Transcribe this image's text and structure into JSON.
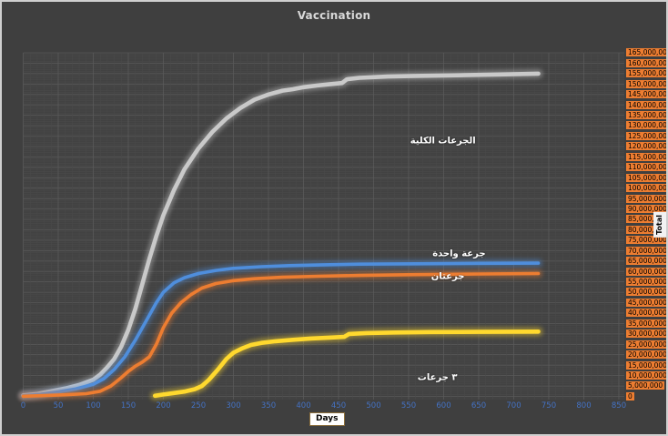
{
  "window": {
    "title": "Vaccination"
  },
  "chart_data": {
    "type": "line",
    "title": "Vaccination",
    "xlabel": "Days",
    "ylabel": "Total",
    "xlim": [
      0,
      850
    ],
    "ylim": [
      0,
      165000000
    ],
    "grid": {
      "minor": true,
      "major": true
    },
    "legend": "none",
    "x_ticks": [
      0,
      50,
      100,
      150,
      200,
      250,
      300,
      350,
      400,
      450,
      500,
      550,
      600,
      650,
      700,
      750,
      800,
      850
    ],
    "y_ticks": [
      0,
      5000000,
      10000000,
      15000000,
      20000000,
      25000000,
      30000000,
      35000000,
      40000000,
      45000000,
      50000000,
      55000000,
      60000000,
      65000000,
      70000000,
      75000000,
      80000000,
      85000000,
      90000000,
      95000000,
      100000000,
      105000000,
      110000000,
      115000000,
      120000000,
      125000000,
      130000000,
      135000000,
      140000000,
      145000000,
      150000000,
      155000000,
      160000000,
      165000000
    ],
    "colors": {
      "background": "#3F3F3F",
      "plot_background": "#424242",
      "grid_minor": "#4A4A4A",
      "grid_major": "#5A5A5A",
      "title_text": "#D9D9D9",
      "x_tick_text": "#4472C4",
      "y_tick_bg": "#ED7D31",
      "y_tick_text": "#000000",
      "annotation_text": "#FFFFFF"
    },
    "series": [
      {
        "id": "total-doses",
        "name": "الجرعات الكلية",
        "color": "#C9C9C9",
        "points": [
          [
            0,
            500000
          ],
          [
            20,
            1200000
          ],
          [
            40,
            2500000
          ],
          [
            60,
            3800000
          ],
          [
            80,
            5500000
          ],
          [
            100,
            8000000
          ],
          [
            110,
            10500000
          ],
          [
            120,
            14000000
          ],
          [
            130,
            18000000
          ],
          [
            140,
            24000000
          ],
          [
            150,
            32000000
          ],
          [
            160,
            42000000
          ],
          [
            170,
            54000000
          ],
          [
            180,
            66000000
          ],
          [
            190,
            77000000
          ],
          [
            200,
            87000000
          ],
          [
            215,
            99000000
          ],
          [
            230,
            109000000
          ],
          [
            250,
            119000000
          ],
          [
            270,
            127000000
          ],
          [
            290,
            133500000
          ],
          [
            310,
            138500000
          ],
          [
            330,
            142500000
          ],
          [
            350,
            145000000
          ],
          [
            370,
            146800000
          ],
          [
            385,
            147500000
          ],
          [
            400,
            148500000
          ],
          [
            420,
            149300000
          ],
          [
            440,
            150000000
          ],
          [
            455,
            150500000
          ],
          [
            462,
            152300000
          ],
          [
            480,
            153000000
          ],
          [
            520,
            153600000
          ],
          [
            560,
            153900000
          ],
          [
            620,
            154200000
          ],
          [
            680,
            154600000
          ],
          [
            735,
            155000000
          ]
        ]
      },
      {
        "id": "one-dose",
        "name": "جرعة واحدة",
        "color": "#4F8EDC",
        "points": [
          [
            0,
            300000
          ],
          [
            25,
            1000000
          ],
          [
            50,
            2200000
          ],
          [
            75,
            3600000
          ],
          [
            100,
            5800000
          ],
          [
            115,
            8500000
          ],
          [
            130,
            13000000
          ],
          [
            145,
            19000000
          ],
          [
            160,
            27000000
          ],
          [
            175,
            36000000
          ],
          [
            190,
            45000000
          ],
          [
            200,
            50000000
          ],
          [
            215,
            54500000
          ],
          [
            230,
            57000000
          ],
          [
            250,
            59000000
          ],
          [
            275,
            60500000
          ],
          [
            300,
            61500000
          ],
          [
            340,
            62300000
          ],
          [
            380,
            62800000
          ],
          [
            430,
            63200000
          ],
          [
            480,
            63500000
          ],
          [
            560,
            63700000
          ],
          [
            650,
            63900000
          ],
          [
            735,
            64000000
          ]
        ]
      },
      {
        "id": "two-doses",
        "name": "جرعتان",
        "color": "#ED7D31",
        "points": [
          [
            0,
            100000
          ],
          [
            30,
            400000
          ],
          [
            60,
            800000
          ],
          [
            90,
            1300000
          ],
          [
            110,
            2500000
          ],
          [
            125,
            5000000
          ],
          [
            140,
            9000000
          ],
          [
            150,
            12000000
          ],
          [
            160,
            14500000
          ],
          [
            170,
            16500000
          ],
          [
            180,
            19000000
          ],
          [
            190,
            25000000
          ],
          [
            200,
            33000000
          ],
          [
            212,
            40000000
          ],
          [
            225,
            45000000
          ],
          [
            240,
            49000000
          ],
          [
            255,
            52000000
          ],
          [
            275,
            54200000
          ],
          [
            300,
            55600000
          ],
          [
            330,
            56500000
          ],
          [
            370,
            57200000
          ],
          [
            420,
            57700000
          ],
          [
            480,
            58100000
          ],
          [
            560,
            58500000
          ],
          [
            650,
            58800000
          ],
          [
            735,
            59000000
          ]
        ]
      },
      {
        "id": "three-doses",
        "name": "٣ جرعات",
        "color": "#FFD92E",
        "points": [
          [
            188,
            300000
          ],
          [
            200,
            900000
          ],
          [
            215,
            1600000
          ],
          [
            230,
            2300000
          ],
          [
            245,
            3500000
          ],
          [
            255,
            5000000
          ],
          [
            265,
            8000000
          ],
          [
            278,
            13000000
          ],
          [
            290,
            18000000
          ],
          [
            300,
            21000000
          ],
          [
            312,
            23000000
          ],
          [
            325,
            24700000
          ],
          [
            340,
            25700000
          ],
          [
            360,
            26500000
          ],
          [
            385,
            27200000
          ],
          [
            410,
            27800000
          ],
          [
            440,
            28300000
          ],
          [
            458,
            28600000
          ],
          [
            465,
            30000000
          ],
          [
            490,
            30400000
          ],
          [
            530,
            30700000
          ],
          [
            580,
            30900000
          ],
          [
            650,
            31000000
          ],
          [
            735,
            31100000
          ]
        ]
      }
    ],
    "series_labels": [
      {
        "text": "الجرعات الكلية",
        "day": 599,
        "value": 122500000
      },
      {
        "text": "جرعة واحدة",
        "day": 622,
        "value": 68400000
      },
      {
        "text": "جرعتان",
        "day": 606,
        "value": 57300000
      },
      {
        "text": "٣ جرعات",
        "day": 591,
        "value": 9000000
      }
    ]
  }
}
